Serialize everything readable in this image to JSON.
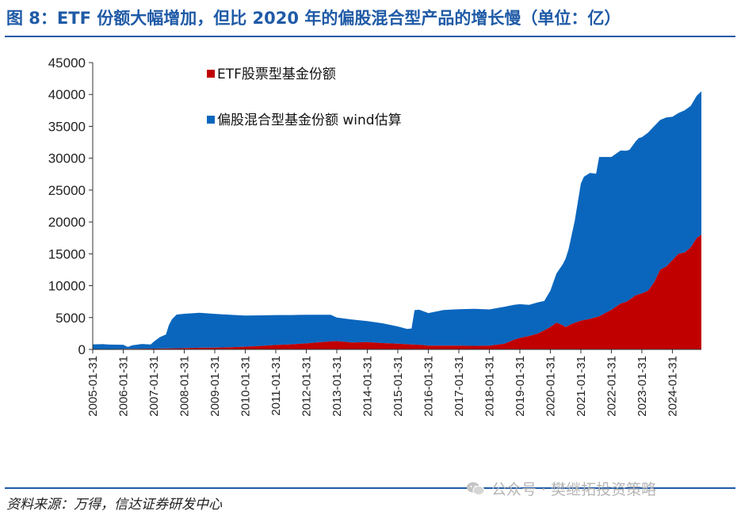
{
  "header": {
    "title": "图 8：ETF 份额大幅增加，但比 2020 年的偏股混合型产品的增长慢（单位：亿）"
  },
  "footer": {
    "source": "资料来源：万得，信达证券研发中心",
    "watermark": "公众号 · 樊继拓投资策略",
    "watermark_icon": "wechat-icon"
  },
  "chart_data": {
    "type": "area",
    "stacked": true,
    "title": "",
    "xlabel": "",
    "ylabel": "",
    "ylim": [
      0,
      45000
    ],
    "yticks": [
      0,
      5000,
      10000,
      15000,
      20000,
      25000,
      30000,
      35000,
      40000,
      45000
    ],
    "xlim": [
      2005.0,
      2024.95
    ],
    "xticks": [
      "2005-01-31",
      "2006-01-31",
      "2007-01-31",
      "2008-01-31",
      "2009-01-31",
      "2010-01-31",
      "2011-01-31",
      "2012-01-31",
      "2013-01-31",
      "2014-01-31",
      "2015-01-31",
      "2016-01-31",
      "2017-01-31",
      "2018-01-31",
      "2019-01-31",
      "2020-01-31",
      "2021-01-31",
      "2022-01-31",
      "2023-01-31",
      "2024-01-31"
    ],
    "grid": false,
    "legend_position": "top-left",
    "colors": {
      "etf": "#c00000",
      "mixed": "#0a66bd",
      "axis": "#333333"
    },
    "series": [
      {
        "name": "ETF股票型基金份额",
        "points": [
          [
            2005.0,
            50
          ],
          [
            2005.5,
            60
          ],
          [
            2006.0,
            80
          ],
          [
            2006.5,
            100
          ],
          [
            2007.0,
            120
          ],
          [
            2007.5,
            150
          ],
          [
            2008.0,
            200
          ],
          [
            2008.5,
            260
          ],
          [
            2009.0,
            280
          ],
          [
            2009.5,
            350
          ],
          [
            2010.0,
            420
          ],
          [
            2010.5,
            550
          ],
          [
            2011.0,
            700
          ],
          [
            2011.5,
            800
          ],
          [
            2012.0,
            950
          ],
          [
            2012.5,
            1150
          ],
          [
            2012.8,
            1250
          ],
          [
            2013.0,
            1300
          ],
          [
            2013.5,
            1100
          ],
          [
            2014.0,
            1150
          ],
          [
            2014.5,
            1000
          ],
          [
            2015.0,
            900
          ],
          [
            2015.4,
            800
          ],
          [
            2015.8,
            700
          ],
          [
            2016.0,
            600
          ],
          [
            2016.5,
            580
          ],
          [
            2017.0,
            600
          ],
          [
            2017.5,
            560
          ],
          [
            2018.0,
            580
          ],
          [
            2018.5,
            900
          ],
          [
            2018.8,
            1500
          ],
          [
            2019.0,
            1800
          ],
          [
            2019.3,
            2100
          ],
          [
            2019.6,
            2500
          ],
          [
            2019.8,
            3000
          ],
          [
            2020.0,
            3500
          ],
          [
            2020.2,
            4200
          ],
          [
            2020.4,
            3800
          ],
          [
            2020.5,
            3500
          ],
          [
            2020.7,
            4000
          ],
          [
            2021.0,
            4500
          ],
          [
            2021.3,
            4800
          ],
          [
            2021.6,
            5200
          ],
          [
            2022.0,
            6200
          ],
          [
            2022.3,
            7200
          ],
          [
            2022.5,
            7500
          ],
          [
            2022.8,
            8500
          ],
          [
            2023.0,
            8800
          ],
          [
            2023.2,
            9200
          ],
          [
            2023.4,
            10500
          ],
          [
            2023.6,
            12500
          ],
          [
            2023.8,
            13000
          ],
          [
            2024.0,
            14000
          ],
          [
            2024.2,
            15000
          ],
          [
            2024.4,
            15200
          ],
          [
            2024.6,
            16000
          ],
          [
            2024.8,
            17500
          ],
          [
            2024.95,
            18000
          ]
        ]
      },
      {
        "name": "偏股混合型基金份额 wind估算",
        "points": [
          [
            2005.0,
            750
          ],
          [
            2005.3,
            780
          ],
          [
            2005.6,
            700
          ],
          [
            2006.0,
            650
          ],
          [
            2006.15,
            300
          ],
          [
            2006.3,
            550
          ],
          [
            2006.6,
            750
          ],
          [
            2006.9,
            650
          ],
          [
            2007.0,
            1100
          ],
          [
            2007.2,
            1800
          ],
          [
            2007.4,
            2200
          ],
          [
            2007.5,
            3700
          ],
          [
            2007.6,
            4600
          ],
          [
            2007.75,
            5300
          ],
          [
            2008.0,
            5400
          ],
          [
            2008.5,
            5500
          ],
          [
            2009.0,
            5300
          ],
          [
            2009.5,
            5100
          ],
          [
            2010.0,
            4900
          ],
          [
            2010.5,
            4800
          ],
          [
            2011.0,
            4700
          ],
          [
            2011.5,
            4600
          ],
          [
            2012.0,
            4500
          ],
          [
            2012.5,
            4300
          ],
          [
            2012.8,
            4200
          ],
          [
            2013.0,
            3700
          ],
          [
            2013.5,
            3600
          ],
          [
            2014.0,
            3300
          ],
          [
            2014.5,
            3100
          ],
          [
            2015.0,
            2700
          ],
          [
            2015.3,
            2400
          ],
          [
            2015.45,
            2500
          ],
          [
            2015.55,
            5400
          ],
          [
            2015.7,
            5500
          ],
          [
            2016.0,
            5100
          ],
          [
            2016.5,
            5600
          ],
          [
            2017.0,
            5700
          ],
          [
            2017.5,
            5800
          ],
          [
            2018.0,
            5700
          ],
          [
            2018.5,
            5800
          ],
          [
            2018.8,
            5500
          ],
          [
            2019.0,
            5300
          ],
          [
            2019.3,
            4900
          ],
          [
            2019.6,
            4900
          ],
          [
            2019.8,
            4600
          ],
          [
            2020.0,
            5700
          ],
          [
            2020.2,
            7700
          ],
          [
            2020.4,
            9500
          ],
          [
            2020.6,
            12000
          ],
          [
            2020.8,
            16000
          ],
          [
            2021.0,
            21500
          ],
          [
            2021.1,
            22500
          ],
          [
            2021.3,
            22900
          ],
          [
            2021.5,
            22500
          ],
          [
            2021.6,
            25000
          ],
          [
            2021.8,
            24500
          ],
          [
            2022.0,
            24000
          ],
          [
            2022.3,
            24000
          ],
          [
            2022.6,
            23500
          ],
          [
            2022.9,
            24500
          ],
          [
            2023.0,
            24500
          ],
          [
            2023.2,
            24800
          ],
          [
            2023.4,
            24500
          ],
          [
            2023.6,
            23500
          ],
          [
            2023.8,
            23400
          ],
          [
            2024.0,
            22500
          ],
          [
            2024.2,
            22100
          ],
          [
            2024.4,
            22300
          ],
          [
            2024.6,
            22200
          ],
          [
            2024.8,
            22300
          ],
          [
            2024.95,
            22500
          ]
        ]
      }
    ]
  }
}
